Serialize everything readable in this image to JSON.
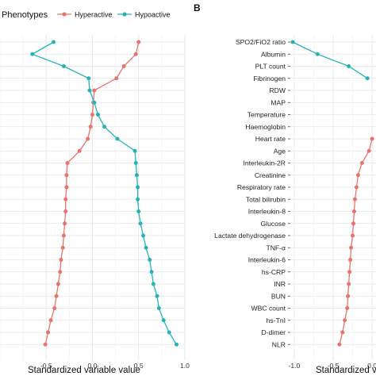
{
  "colors": {
    "hyperactive": "#e8736c",
    "hypoactive": "#25b3b7",
    "panel_bg": "#ffffff",
    "grid": "#e4e4e4"
  },
  "legend": {
    "title": "Phenotypes",
    "items": [
      {
        "label": "Hyperactive",
        "series": "hyperactive"
      },
      {
        "label": "Hypoactive",
        "series": "hypoactive"
      }
    ]
  },
  "chart_data": [
    {
      "type": "line",
      "panel_label": "",
      "xlabel": "Standardized variable value",
      "x_ticks": [
        "-0.5",
        "0.0",
        "0.5",
        "1.0"
      ],
      "xlim": [
        -1.0,
        1.0
      ],
      "grid": true,
      "legend_position": "top",
      "categories_top_to_bottom": 26,
      "series": [
        {
          "name": "Hyperactive",
          "key": "hyperactive",
          "values": [
            0.5,
            0.47,
            0.34,
            0.26,
            0.02,
            0.01,
            0.0,
            -0.02,
            -0.05,
            -0.14,
            -0.27,
            -0.28,
            -0.28,
            -0.29,
            -0.29,
            -0.3,
            -0.31,
            -0.32,
            -0.34,
            -0.35,
            -0.37,
            -0.39,
            -0.41,
            -0.45,
            -0.48,
            -0.51
          ]
        },
        {
          "name": "Hypoactive",
          "key": "hypoactive",
          "values": [
            -0.42,
            -0.65,
            -0.31,
            -0.04,
            -0.03,
            0.02,
            0.06,
            0.13,
            0.27,
            0.46,
            0.47,
            0.48,
            0.49,
            0.49,
            0.5,
            0.52,
            0.55,
            0.58,
            0.62,
            0.64,
            0.66,
            0.7,
            0.72,
            0.77,
            0.83,
            0.91
          ]
        }
      ]
    },
    {
      "type": "line",
      "panel_label": "B",
      "xlabel": "Standardized variable value",
      "x_ticks": [
        "-1.0",
        "-0.5",
        "0.0"
      ],
      "xlim": [
        -1.05,
        0.05
      ],
      "grid": true,
      "categories": [
        "SPO2/FiO2 ratio",
        "Albumin",
        "PLT count",
        "Fibrinogen",
        "RDW",
        "MAP",
        "Temperature",
        "Haemoglobin",
        "Heart rate",
        "Age",
        "Interleukin-2R",
        "Creatinine",
        "Respiratory rate",
        "Total bilirubin",
        "Interleukin-8",
        "Glucose",
        "Lactate dehydrogenase",
        "TNF-α",
        "Interleukin-6",
        "hs-CRP",
        "INR",
        "BUN",
        "WBC count",
        "hs-TnI",
        "D-dimer",
        "NLR"
      ],
      "series": [
        {
          "name": "Hypoactive",
          "key": "hypoactive",
          "values": [
            -1.02,
            -0.7,
            -0.3,
            -0.06,
            null,
            null,
            null,
            null,
            null,
            null,
            null,
            null,
            null,
            null,
            null,
            null,
            null,
            null,
            null,
            null,
            null,
            null,
            null,
            null,
            null,
            null
          ]
        },
        {
          "name": "Hyperactive",
          "key": "hyperactive",
          "values": [
            null,
            null,
            null,
            null,
            null,
            null,
            null,
            null,
            0.0,
            -0.04,
            -0.13,
            -0.18,
            -0.2,
            -0.22,
            -0.23,
            -0.24,
            -0.25,
            -0.27,
            -0.28,
            -0.29,
            -0.3,
            -0.31,
            -0.32,
            -0.35,
            -0.38,
            -0.42
          ]
        }
      ]
    }
  ]
}
